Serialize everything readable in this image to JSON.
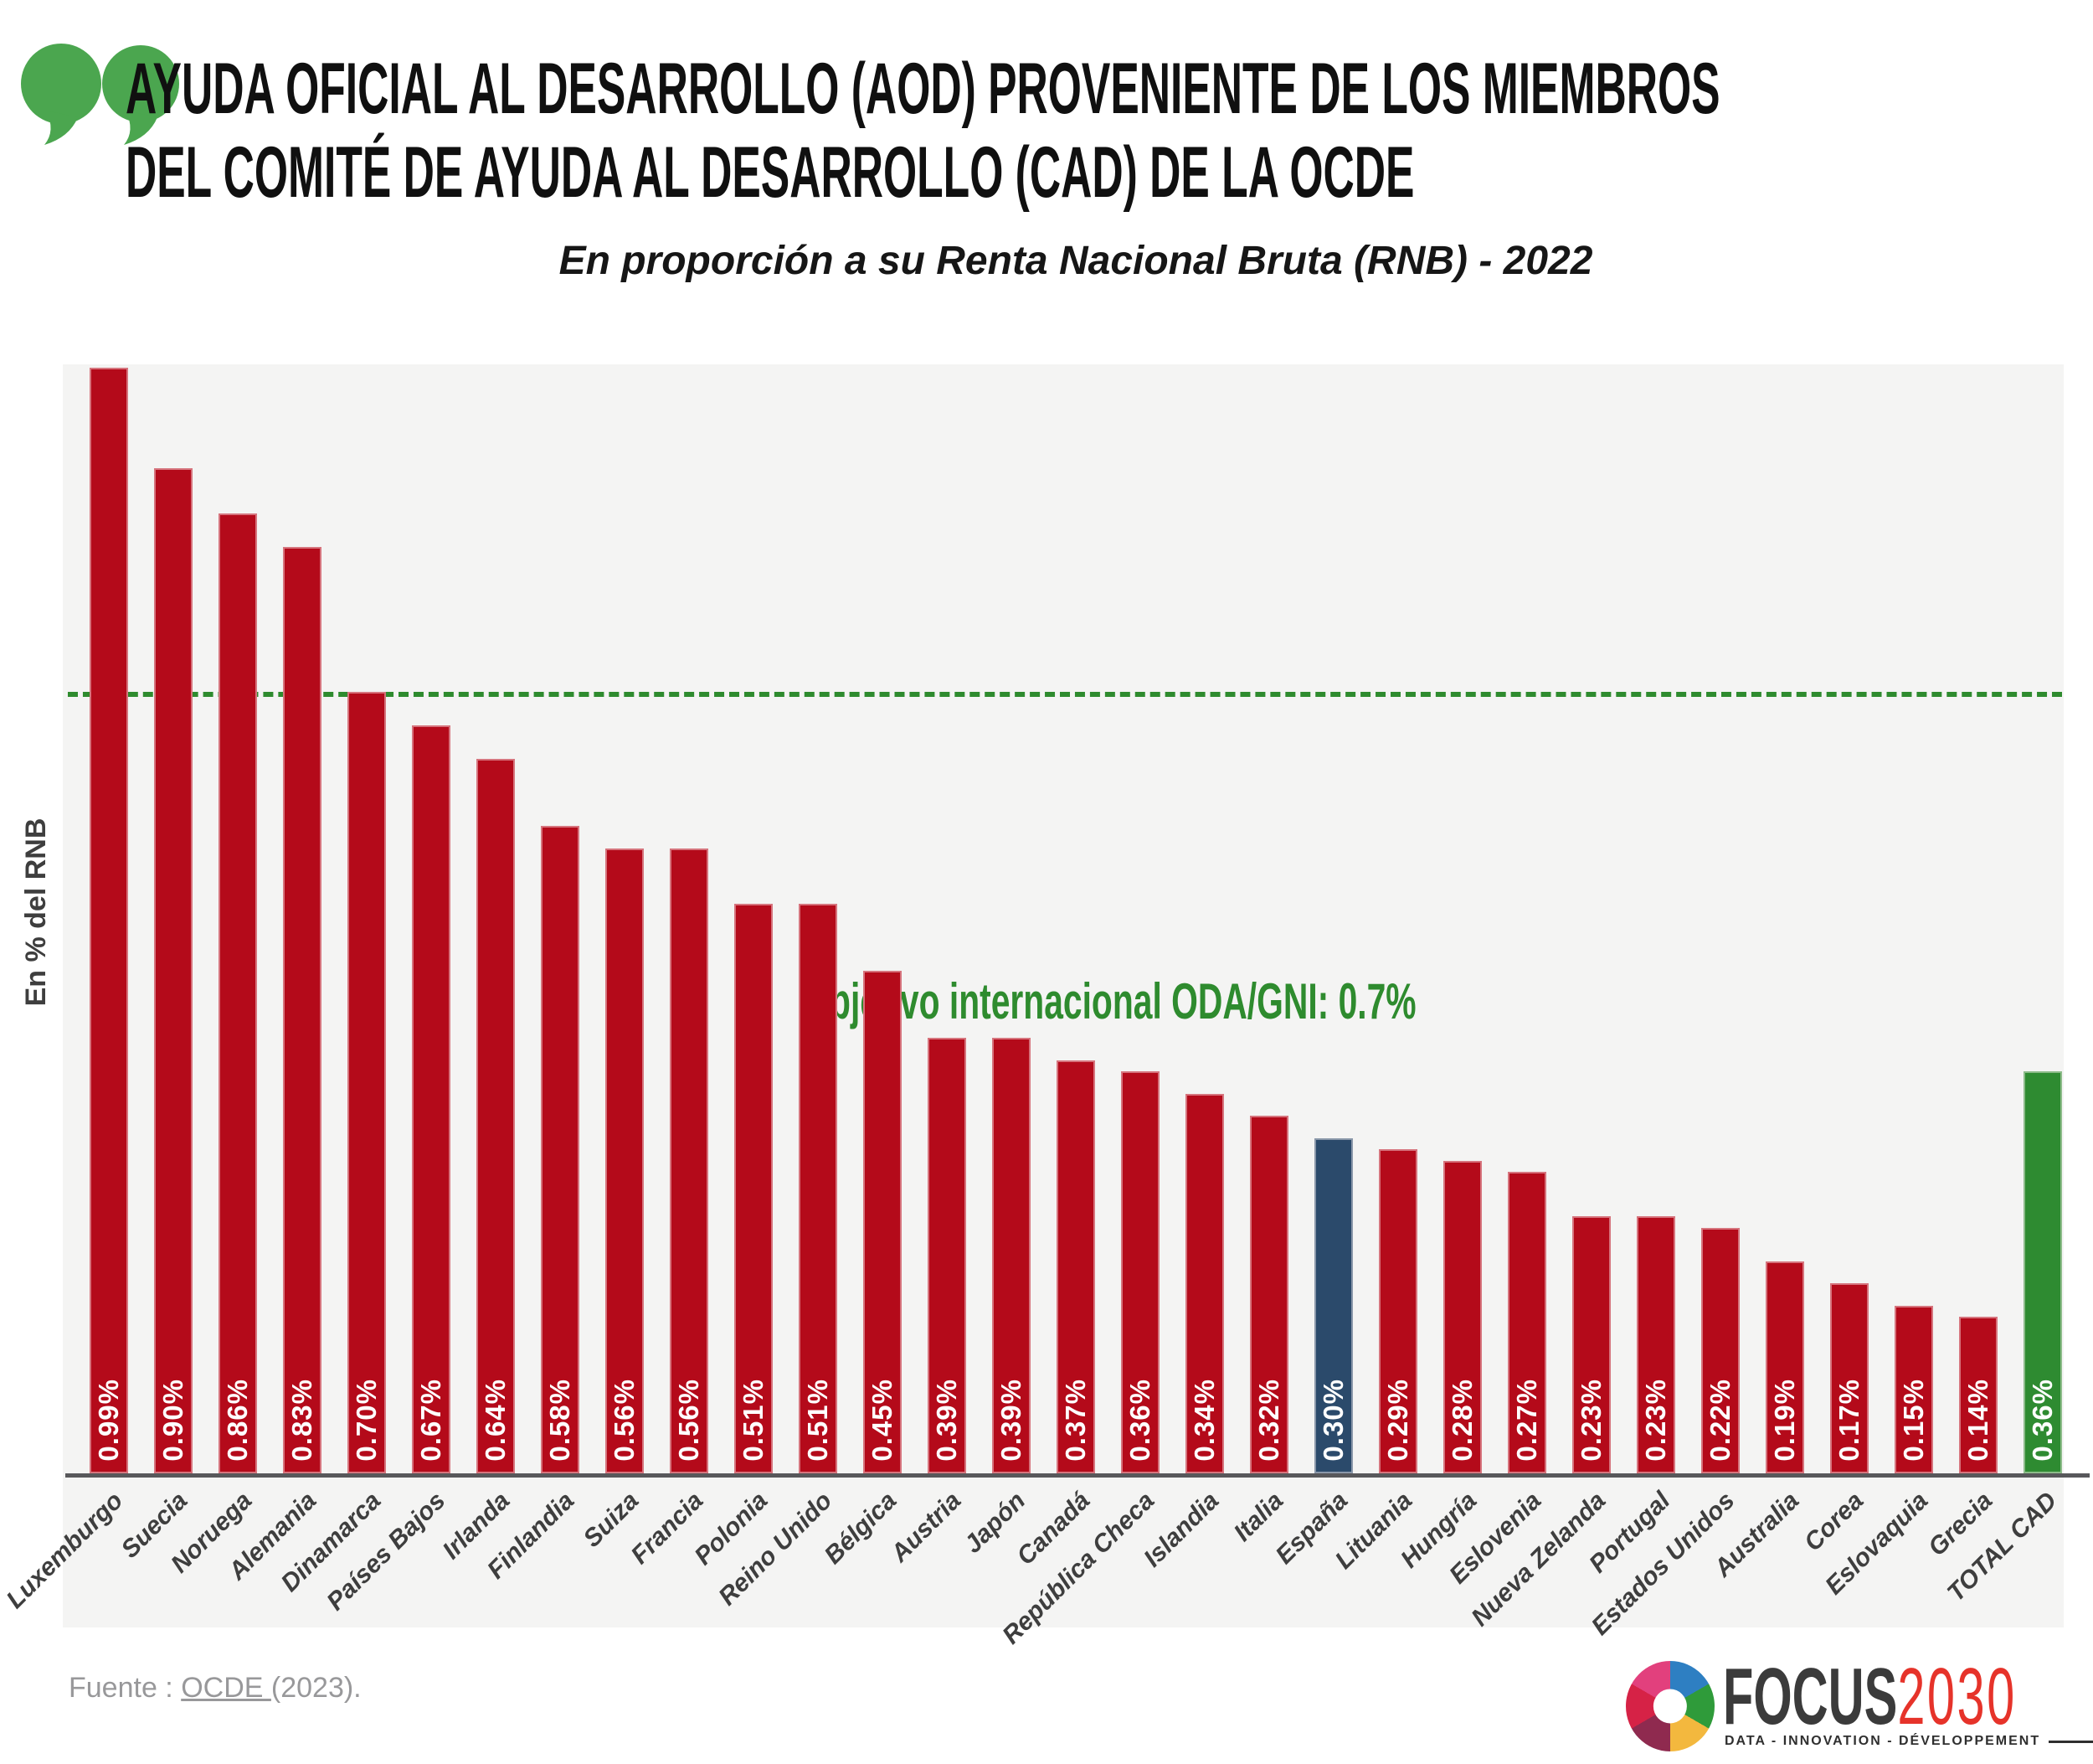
{
  "header": {
    "title_line1": "AYUDA OFICIAL AL DESARROLLO (AOD) PROVENIENTE DE LOS MIEMBROS",
    "title_line2": "DEL COMITÉ DE AYUDA AL DESARROLLO (CAD) DE LA OCDE",
    "subtitle": "En proporción a su Renta Nacional Bruta (RNB) - 2022"
  },
  "chart_data": {
    "type": "bar",
    "title": "Ayuda oficial al desarrollo (AOD) proveniente de los miembros del CAD de la OCDE, en proporción a su RNB - 2022",
    "xlabel": "",
    "ylabel": "En % del RNB",
    "ylim": [
      0,
      1.0
    ],
    "grid": false,
    "legend_position": "none",
    "target_line": {
      "value": 0.7,
      "label": "Objetivo internacional ODA/GNI: 0.7%",
      "color": "#2e8b2e",
      "style": "dashed"
    },
    "categories": [
      "Luxemburgo",
      "Suecia",
      "Noruega",
      "Alemania",
      "Dinamarca",
      "Países Bajos",
      "Irlanda",
      "Finlandia",
      "Suiza",
      "Francia",
      "Polonia",
      "Reino Unido",
      "Bélgica",
      "Austria",
      "Japón",
      "Canadá",
      "República Checa",
      "Islandia",
      "Italia",
      "España",
      "Lituania",
      "Hungría",
      "Eslovenia",
      "Nueva Zelanda",
      "Portugal",
      "Estados Unidos",
      "Australia",
      "Corea",
      "Eslovaquia",
      "Grecia",
      "TOTAL CAD"
    ],
    "values": [
      0.99,
      0.9,
      0.86,
      0.83,
      0.7,
      0.67,
      0.64,
      0.58,
      0.56,
      0.56,
      0.51,
      0.51,
      0.45,
      0.39,
      0.39,
      0.37,
      0.36,
      0.34,
      0.32,
      0.3,
      0.29,
      0.28,
      0.27,
      0.23,
      0.23,
      0.22,
      0.19,
      0.17,
      0.15,
      0.14,
      0.36
    ],
    "value_labels": [
      "0.99%",
      "0.90%",
      "0.86%",
      "0.83%",
      "0.70%",
      "0.67%",
      "0.64%",
      "0.58%",
      "0.56%",
      "0.56%",
      "0.51%",
      "0.51%",
      "0.45%",
      "0.39%",
      "0.39%",
      "0.37%",
      "0.36%",
      "0.34%",
      "0.32%",
      "0.30%",
      "0.29%",
      "0.28%",
      "0.27%",
      "0.23%",
      "0.23%",
      "0.22%",
      "0.19%",
      "0.17%",
      "0.15%",
      "0.14%",
      "0.36%"
    ],
    "bar_colors": [
      "#b40a1a",
      "#b40a1a",
      "#b40a1a",
      "#b40a1a",
      "#b40a1a",
      "#b40a1a",
      "#b40a1a",
      "#b40a1a",
      "#b40a1a",
      "#b40a1a",
      "#b40a1a",
      "#b40a1a",
      "#b40a1a",
      "#b40a1a",
      "#b40a1a",
      "#b40a1a",
      "#b40a1a",
      "#b40a1a",
      "#b40a1a",
      "#2b4a6b",
      "#b40a1a",
      "#b40a1a",
      "#b40a1a",
      "#b40a1a",
      "#b40a1a",
      "#b40a1a",
      "#b40a1a",
      "#b40a1a",
      "#b40a1a",
      "#b40a1a",
      "#2e8b31"
    ],
    "colors": {
      "default_bar": "#b40a1a",
      "espana_bar": "#2b4a6b",
      "total_cad_bar": "#2e8b31",
      "target_green": "#2e8b2e",
      "plot_background": "#f4f4f3",
      "axis": "#58585b"
    }
  },
  "footer": {
    "source_prefix": "Fuente : ",
    "source_link": "OCDE ",
    "source_suffix": "(2023)."
  },
  "logo": {
    "name_primary": "FOCUS",
    "name_secondary": "2030",
    "tagline": "DATA - INNOVATION - DÉVELOPPEMENT"
  }
}
